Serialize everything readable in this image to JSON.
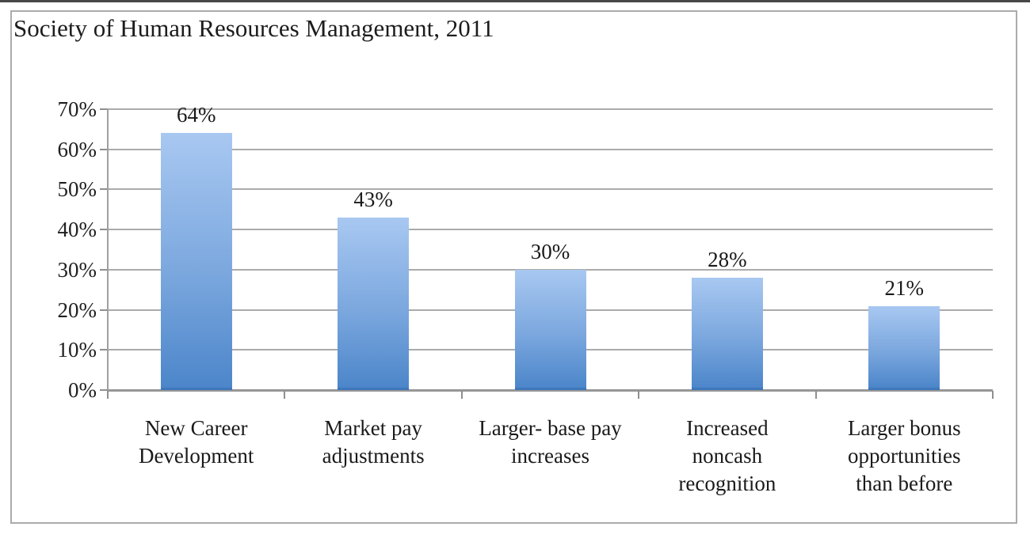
{
  "chart_data": {
    "type": "bar",
    "title": "Society of Human Resources Management, 2011",
    "categories": [
      "New Career Development",
      "Market pay adjustments",
      "Larger- base pay increases",
      "Increased noncash recognition",
      "Larger bonus opportunities than before"
    ],
    "category_label_lines": [
      [
        "New Career",
        "Development"
      ],
      [
        "Market pay",
        "adjustments"
      ],
      [
        "Larger- base pay",
        "increases"
      ],
      [
        "Increased",
        "noncash",
        "recognition"
      ],
      [
        "Larger bonus",
        "opportunities",
        "than before"
      ]
    ],
    "values": [
      64,
      43,
      30,
      28,
      21
    ],
    "data_labels": [
      "64%",
      "43%",
      "30%",
      "28%",
      "21%"
    ],
    "y_tick_labels": [
      "0%",
      "10%",
      "20%",
      "30%",
      "40%",
      "50%",
      "60%",
      "70%"
    ],
    "ylabel": "",
    "xlabel": "",
    "ylim": [
      0,
      70
    ],
    "y_step": 10,
    "grid": true,
    "legend": false,
    "colors": {
      "bar_top": "#a8c8f1",
      "bar_bottom": "#4c86ca",
      "gridline": "#ababab",
      "text": "#1f1f1f"
    }
  }
}
